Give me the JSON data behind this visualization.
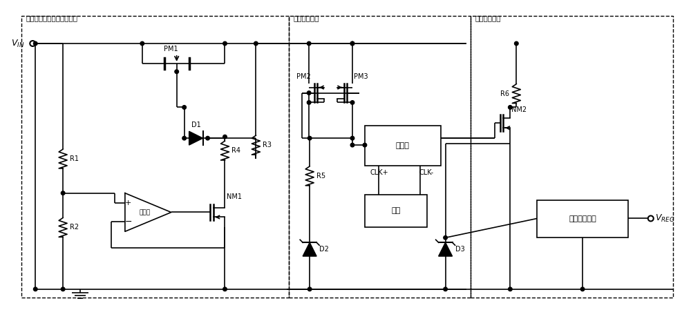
{
  "fig_w": 10.0,
  "fig_h": 4.49,
  "dpi": 100,
  "box1_label": "带反接保护的电压输入模块",
  "box2_label": "内部供电模块",
  "box3_label": "低压稳压模块",
  "vin_label": "V_{IN}",
  "vreg_label": "V_{REG}",
  "comp_label": "比较器",
  "cp_label": "电荷泵",
  "clk_label": "时钟",
  "ldo_label": "低压稳压模块",
  "clkp": "CLK+",
  "clkm": "CLK-"
}
